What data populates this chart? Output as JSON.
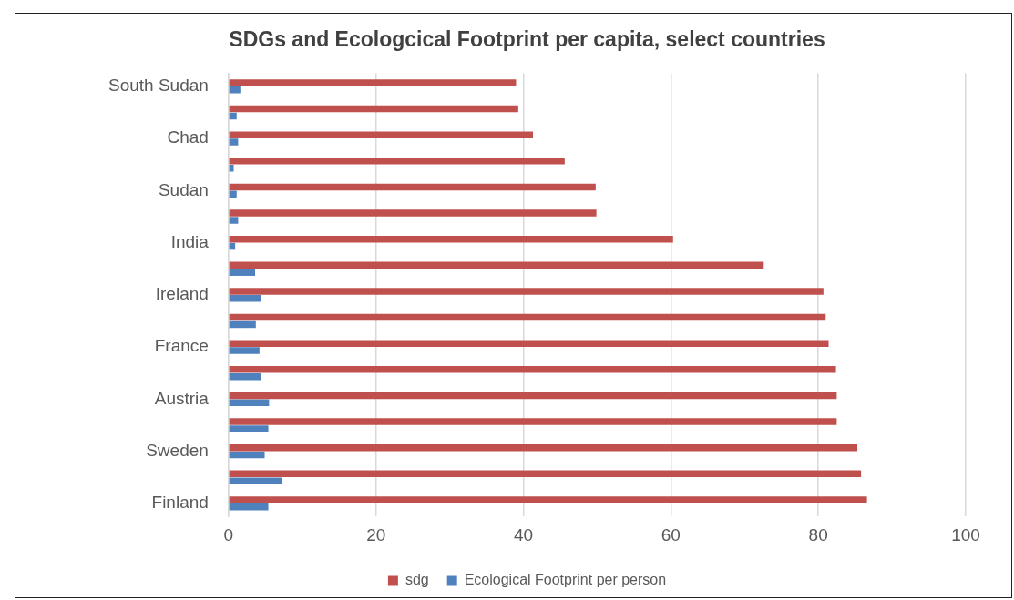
{
  "chart_data": {
    "type": "bar",
    "orientation": "horizontal",
    "title": "SDGs and Ecologcical Footprint per capita, select countries",
    "categories": [
      "South Sudan",
      null,
      "Chad",
      null,
      "Sudan",
      null,
      "India",
      null,
      "Ireland",
      null,
      "France",
      null,
      "Austria",
      null,
      "Sweden",
      null,
      "Finland"
    ],
    "series": [
      {
        "name": "sdg",
        "color": "#c0504d",
        "values": [
          39.0,
          39.3,
          41.3,
          45.6,
          49.8,
          49.9,
          60.3,
          72.6,
          80.7,
          81.0,
          81.4,
          82.4,
          82.5,
          82.5,
          85.3,
          85.8,
          86.6
        ]
      },
      {
        "name": "Ecological Footprint per person",
        "color": "#4f81bd",
        "values": [
          1.6,
          1.1,
          1.3,
          0.7,
          1.1,
          1.3,
          0.9,
          3.6,
          4.4,
          3.7,
          4.2,
          4.4,
          5.5,
          5.4,
          4.9,
          7.2,
          5.4
        ]
      }
    ],
    "xlim": [
      0,
      100
    ],
    "xticks": [
      0,
      20,
      40,
      60,
      80,
      100
    ],
    "grid": "x",
    "legend": "bottom"
  }
}
